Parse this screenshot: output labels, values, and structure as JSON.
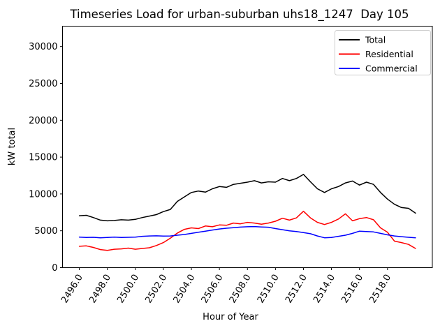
{
  "figure": {
    "background": "#ffffff",
    "frame_color": "#000000"
  },
  "chart_data": {
    "type": "line",
    "title": "Timeseries Load for urban-suburban uhs18_1247  Day 105",
    "xlabel": "Hour of Year",
    "ylabel": "kW total",
    "xlim": [
      2494.8,
      2521.2
    ],
    "ylim": [
      0,
      32765
    ],
    "grid": false,
    "xticks": {
      "values": [
        2496,
        2498,
        2500,
        2502,
        2504,
        2506,
        2508,
        2510,
        2512,
        2514,
        2516,
        2518
      ],
      "labels": [
        "2496.0",
        "2498.0",
        "2500.0",
        "2502.0",
        "2504.0",
        "2506.0",
        "2508.0",
        "2510.0",
        "2512.0",
        "2514.0",
        "2516.0",
        "2518.0"
      ]
    },
    "yticks": {
      "values": [
        0,
        5000,
        10000,
        15000,
        20000,
        25000,
        30000
      ],
      "labels": [
        "0",
        "5000",
        "10000",
        "15000",
        "20000",
        "25000",
        "30000"
      ]
    },
    "legend": {
      "position": "upper right",
      "border_color": "#cccccc",
      "entries": [
        "Total",
        "Residential",
        "Commercial"
      ]
    },
    "x": [
      2496.0,
      2496.5,
      2497.0,
      2497.5,
      2498.0,
      2498.5,
      2499.0,
      2499.5,
      2500.0,
      2500.5,
      2501.0,
      2501.5,
      2502.0,
      2502.5,
      2503.0,
      2503.5,
      2504.0,
      2504.5,
      2505.0,
      2505.5,
      2506.0,
      2506.5,
      2507.0,
      2507.5,
      2508.0,
      2508.5,
      2509.0,
      2509.5,
      2510.0,
      2510.5,
      2511.0,
      2511.5,
      2512.0,
      2512.5,
      2513.0,
      2513.5,
      2514.0,
      2514.5,
      2515.0,
      2515.5,
      2516.0,
      2516.5,
      2517.0,
      2517.5,
      2518.0,
      2518.5,
      2519.0,
      2519.5,
      2520.0
    ],
    "series": [
      {
        "name": "Total",
        "color": "#000000",
        "values": [
          7050,
          7100,
          6800,
          6450,
          6350,
          6400,
          6500,
          6450,
          6550,
          6800,
          7000,
          7200,
          7600,
          7900,
          9000,
          9600,
          10200,
          10400,
          10250,
          10700,
          11000,
          10900,
          11300,
          11450,
          11600,
          11800,
          11500,
          11650,
          11600,
          12100,
          11800,
          12100,
          12650,
          11650,
          10700,
          10200,
          10700,
          11000,
          11500,
          11750,
          11200,
          11600,
          11300,
          10200,
          9300,
          8600,
          8150,
          8050,
          7400
        ]
      },
      {
        "name": "Residential",
        "color": "#ff0000",
        "values": [
          2900,
          2950,
          2750,
          2450,
          2350,
          2500,
          2550,
          2650,
          2500,
          2600,
          2700,
          3000,
          3400,
          4000,
          4700,
          5200,
          5400,
          5300,
          5650,
          5550,
          5800,
          5750,
          6050,
          5950,
          6150,
          6050,
          5900,
          6050,
          6300,
          6700,
          6450,
          6750,
          7650,
          6750,
          6150,
          5850,
          6150,
          6600,
          7300,
          6350,
          6650,
          6800,
          6500,
          5400,
          4800,
          3600,
          3400,
          3150,
          2600
        ]
      },
      {
        "name": "Commercial",
        "color": "#0000ff",
        "values": [
          4150,
          4100,
          4120,
          4050,
          4100,
          4150,
          4100,
          4120,
          4150,
          4250,
          4300,
          4320,
          4280,
          4300,
          4400,
          4500,
          4650,
          4800,
          4950,
          5100,
          5250,
          5350,
          5420,
          5500,
          5550,
          5580,
          5520,
          5480,
          5300,
          5150,
          5000,
          4900,
          4750,
          4600,
          4300,
          4050,
          4100,
          4250,
          4400,
          4650,
          4950,
          4900,
          4850,
          4650,
          4450,
          4300,
          4200,
          4120,
          4050
        ]
      }
    ]
  }
}
